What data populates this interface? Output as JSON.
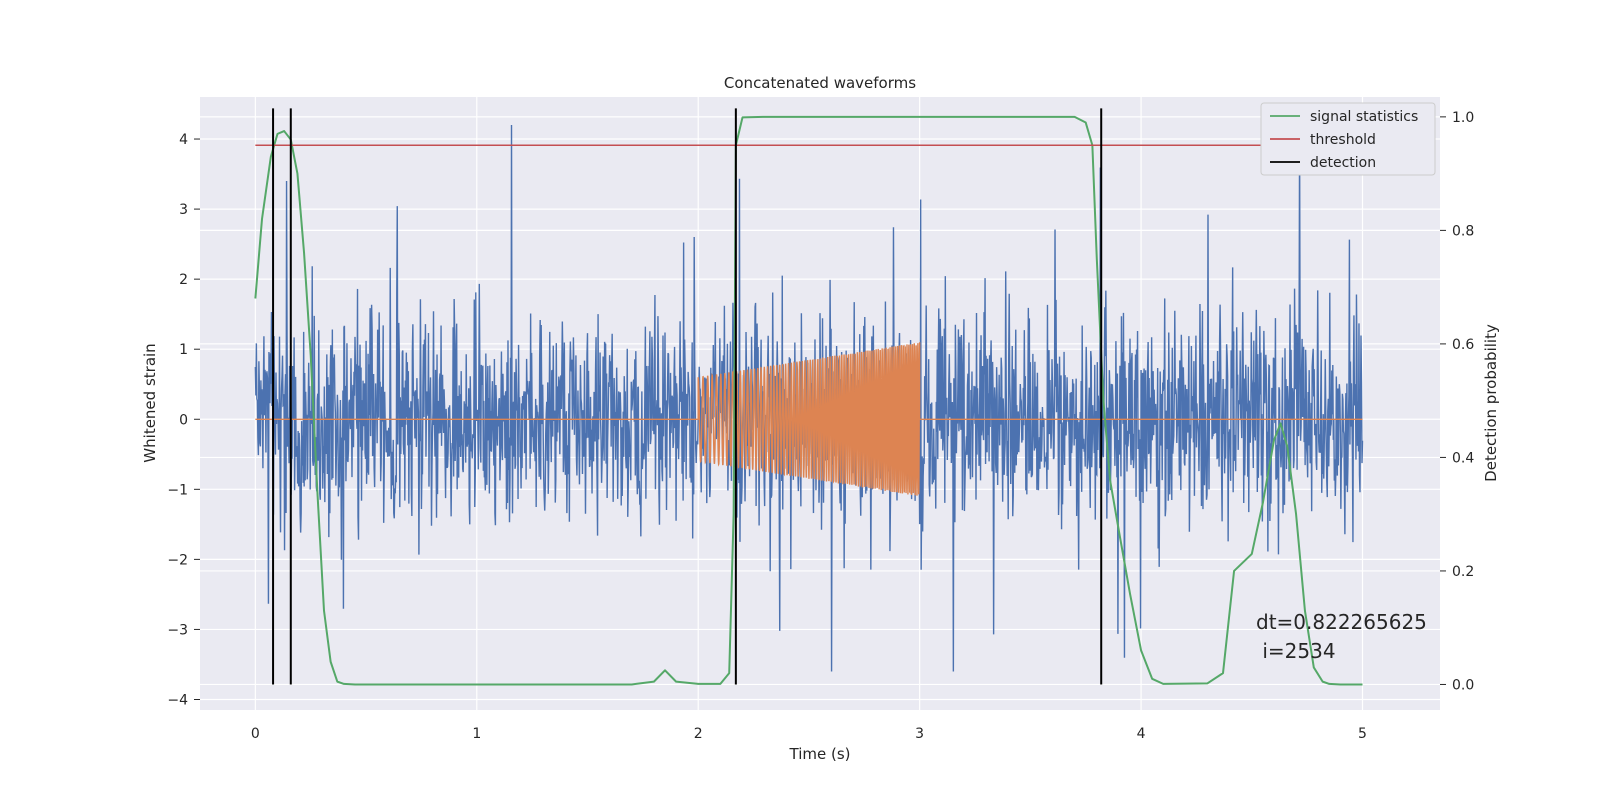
{
  "chart_data": {
    "type": "line",
    "title": "Concatenated waveforms",
    "xlabel": "Time (s)",
    "ylabel": "Whitened strain",
    "y2label": "Detection probability",
    "xlim": [
      -0.25,
      5.35
    ],
    "ylim": [
      -4.15,
      4.6
    ],
    "y2lim": [
      -0.045,
      1.035
    ],
    "xticks": [
      "0",
      "1",
      "2",
      "3",
      "4",
      "5"
    ],
    "xtick_values": [
      0,
      1,
      2,
      3,
      4,
      5
    ],
    "yticks": [
      "−4",
      "−3",
      "−2",
      "−1",
      "0",
      "1",
      "2",
      "3",
      "4"
    ],
    "ytick_values": [
      -4,
      -3,
      -2,
      -1,
      0,
      1,
      2,
      3,
      4
    ],
    "y2ticks": [
      "0.0",
      "0.2",
      "0.4",
      "0.6",
      "0.8",
      "1.0"
    ],
    "y2tick_values": [
      0.0,
      0.2,
      0.4,
      0.6,
      0.8,
      1.0
    ],
    "grid": true,
    "legend_position": "top-right",
    "colors": {
      "strain": "#4c72b0",
      "injection": "#dd8452",
      "signal_statistics": "#55a868",
      "threshold": "#c44e52",
      "detection": "#000000",
      "axes_face": "#eaeaf2"
    },
    "series": [
      {
        "name": "",
        "axis": "left",
        "kind": "noise",
        "x_range": [
          0,
          5
        ],
        "typical_amplitude": 1.0,
        "extreme_range": [
          -3.6,
          4.2
        ]
      },
      {
        "name": "",
        "axis": "left",
        "kind": "chirp",
        "baseline": 0,
        "x_range": [
          0,
          5
        ],
        "chirp_x_range": [
          2.0,
          3.0
        ],
        "amplitude_start": 0.6,
        "amplitude_end": 1.1
      },
      {
        "name": "signal statistics",
        "axis": "right",
        "x": [
          0.0,
          0.03,
          0.07,
          0.1,
          0.13,
          0.16,
          0.19,
          0.22,
          0.25,
          0.28,
          0.31,
          0.34,
          0.37,
          0.4,
          0.45,
          1.7,
          1.8,
          1.85,
          1.9,
          2.0,
          2.1,
          2.14,
          2.16,
          2.17,
          2.2,
          2.3,
          3.0,
          3.7,
          3.75,
          3.78,
          3.8,
          3.83,
          3.86,
          3.9,
          3.95,
          4.0,
          4.05,
          4.1,
          4.3,
          4.37,
          4.42,
          4.5,
          4.55,
          4.6,
          4.63,
          4.66,
          4.7,
          4.74,
          4.78,
          4.82,
          4.85,
          4.9,
          5.0
        ],
        "values": [
          0.68,
          0.82,
          0.93,
          0.97,
          0.975,
          0.96,
          0.9,
          0.76,
          0.58,
          0.34,
          0.13,
          0.04,
          0.005,
          0.001,
          0.0,
          0.0,
          0.005,
          0.025,
          0.005,
          0.001,
          0.001,
          0.02,
          0.3,
          0.95,
          0.999,
          1.0,
          1.0,
          1.0,
          0.99,
          0.95,
          0.75,
          0.5,
          0.36,
          0.27,
          0.16,
          0.06,
          0.01,
          0.001,
          0.002,
          0.02,
          0.2,
          0.23,
          0.32,
          0.43,
          0.46,
          0.42,
          0.3,
          0.13,
          0.03,
          0.005,
          0.001,
          0.0,
          0.0
        ]
      },
      {
        "name": "threshold",
        "axis": "right",
        "x": [
          0,
          5
        ],
        "values": [
          0.95,
          0.95
        ]
      },
      {
        "name": "detection",
        "axis": "right",
        "kind": "vertical_lines",
        "x": [
          0.08,
          0.16,
          2.17,
          3.82
        ]
      }
    ],
    "legend": [
      "signal statistics",
      "threshold",
      "detection"
    ],
    "annotation": {
      "line1": "dt=0.822265625",
      "line2": " i=2534"
    }
  }
}
